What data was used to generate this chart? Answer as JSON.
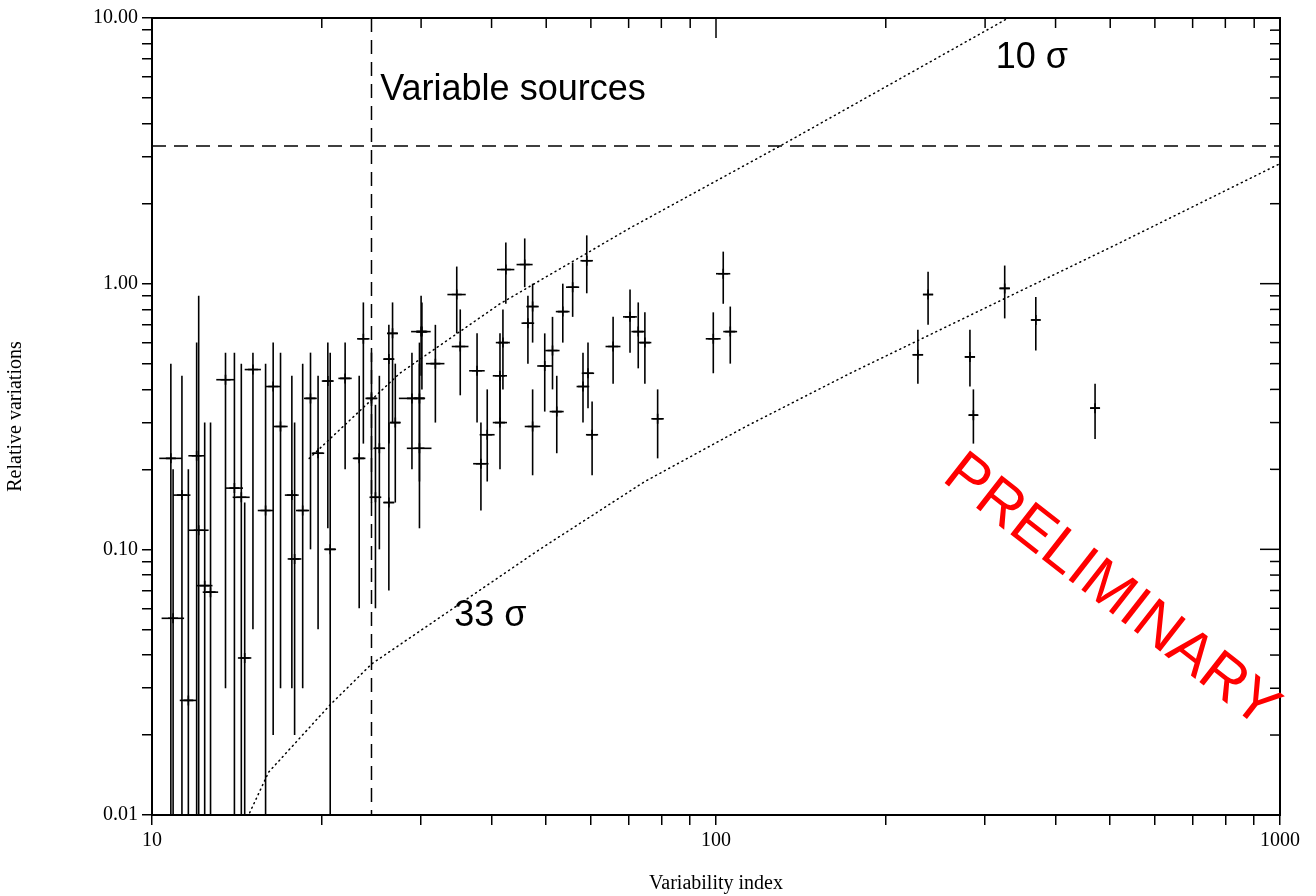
{
  "chart_data": {
    "type": "scatter",
    "xlabel": "Variability index",
    "ylabel": "Relative variations",
    "log": "xy",
    "grid": false,
    "legend": false,
    "xlim": [
      10,
      1000
    ],
    "ylim": [
      0.01,
      10
    ],
    "xticks": [
      10,
      {
        "value": 20,
        "label": null
      },
      {
        "value": 30,
        "label": null
      },
      {
        "value": 40,
        "label": null
      },
      {
        "value": 50,
        "label": null
      },
      {
        "value": 60,
        "label": null
      },
      {
        "value": 70,
        "label": null
      },
      {
        "value": 80,
        "label": null
      },
      {
        "value": 90,
        "label": null
      },
      100,
      {
        "value": 200,
        "label": null
      },
      {
        "value": 300,
        "label": null
      },
      {
        "value": 400,
        "label": null
      },
      {
        "value": 500,
        "label": null
      },
      {
        "value": 600,
        "label": null
      },
      {
        "value": 700,
        "label": null
      },
      {
        "value": 800,
        "label": null
      },
      {
        "value": 900,
        "label": null
      },
      1000
    ],
    "yticks": [
      {
        "value": 0.01,
        "label": "0.01"
      },
      {
        "value": 0.02,
        "label": null
      },
      {
        "value": 0.03,
        "label": null
      },
      {
        "value": 0.04,
        "label": null
      },
      {
        "value": 0.05,
        "label": null
      },
      {
        "value": 0.06,
        "label": null
      },
      {
        "value": 0.07,
        "label": null
      },
      {
        "value": 0.08,
        "label": null
      },
      {
        "value": 0.09,
        "label": null
      },
      {
        "value": 0.1,
        "label": "0.10"
      },
      {
        "value": 0.2,
        "label": null
      },
      {
        "value": 0.3,
        "label": null
      },
      {
        "value": 0.4,
        "label": null
      },
      {
        "value": 0.5,
        "label": null
      },
      {
        "value": 0.6,
        "label": null
      },
      {
        "value": 0.7,
        "label": null
      },
      {
        "value": 0.8,
        "label": null
      },
      {
        "value": 0.9,
        "label": null
      },
      {
        "value": 1,
        "label": "1.00"
      },
      {
        "value": 2,
        "label": null
      },
      {
        "value": 3,
        "label": null
      },
      {
        "value": 4,
        "label": null
      },
      {
        "value": 5,
        "label": null
      },
      {
        "value": 6,
        "label": null
      },
      {
        "value": 7,
        "label": null
      },
      {
        "value": 8,
        "label": null
      },
      {
        "value": 9,
        "label": null
      },
      {
        "value": 10,
        "label": "10.00"
      }
    ],
    "ref_lines": [
      {
        "axis": "x",
        "value": 24.5,
        "color": "#000000",
        "line_style": "dashed"
      },
      {
        "axis": "y",
        "value": 3.3,
        "color": "#000000",
        "line_style": "dashed"
      }
    ],
    "annotations": [
      "Variable sources",
      "10 σ",
      "33 σ",
      "PRELIMINARY"
    ],
    "series": [
      {
        "color": "#000000",
        "marker": "cross",
        "x": [
          237.7,
          228,
          282,
          286,
          325,
          369,
          470,
          103,
          98.9,
          106,
          42.4,
          45.8,
          59.0,
          55.7,
          53.5,
          34.7,
          30.0,
          47.3,
          46.4,
          65.7,
          70.4,
          72.8,
          74.8,
          78.8,
          59.3,
          58.1,
          60.3,
          52.2,
          47.3,
          51.3,
          49.7,
          41.9,
          41.4,
          41.4,
          39.3,
          38.3,
          37.7,
          35.2,
          29.8,
          28.9,
          31.8,
          10.8,
          10.9,
          11.3,
          11.6,
          12.1,
          12.0,
          12.4,
          12.7,
          13.5,
          14.0,
          14.4,
          14.6,
          15.1,
          15.9,
          16.4,
          16.9,
          17.7,
          17.9,
          18.5,
          19.1,
          19.7,
          20.7,
          20.5,
          22.0,
          23.3,
          23.7,
          24.9,
          25.3,
          26.3,
          26.7,
          27.0,
          26.3,
          29.8,
          30.1,
          24.5
        ],
        "values": [
          0.91,
          0.54,
          0.53,
          0.32,
          0.96,
          0.73,
          0.34,
          1.09,
          0.62,
          0.66,
          1.13,
          1.18,
          1.22,
          0.97,
          0.785,
          0.91,
          0.66,
          0.82,
          0.71,
          0.58,
          0.75,
          0.66,
          0.6,
          0.31,
          0.46,
          0.41,
          0.27,
          0.33,
          0.29,
          0.56,
          0.49,
          0.6,
          0.45,
          0.3,
          0.27,
          0.21,
          0.47,
          0.58,
          0.24,
          0.37,
          0.5,
          0.22,
          0.055,
          0.16,
          0.027,
          0.118,
          0.225,
          0.073,
          0.069,
          0.435,
          0.17,
          0.157,
          0.039,
          0.475,
          0.14,
          0.41,
          0.29,
          0.16,
          0.092,
          0.14,
          0.37,
          0.23,
          0.1,
          0.43,
          0.44,
          0.22,
          0.62,
          0.157,
          0.24,
          0.15,
          0.65,
          0.3,
          0.52,
          0.37,
          0.66,
          0.37
        ],
        "errors": [
          [
            0.7,
            1.11
          ],
          [
            0.42,
            0.67
          ],
          [
            0.41,
            0.67
          ],
          [
            0.25,
            0.4
          ],
          [
            0.74,
            1.17
          ],
          [
            0.56,
            0.89
          ],
          [
            0.26,
            0.42
          ],
          [
            0.84,
            1.32
          ],
          [
            0.46,
            0.78
          ],
          [
            0.5,
            0.82
          ],
          [
            0.84,
            1.43
          ],
          [
            0.97,
            1.48
          ],
          [
            0.92,
            1.52
          ],
          [
            0.75,
            1.2
          ],
          [
            0.6,
            1.0
          ],
          [
            0.65,
            1.16
          ],
          [
            0.45,
            0.9
          ],
          [
            0.6,
            1.0
          ],
          [
            0.5,
            0.9
          ],
          [
            0.42,
            0.75
          ],
          [
            0.55,
            0.95
          ],
          [
            0.48,
            0.85
          ],
          [
            0.42,
            0.78
          ],
          [
            0.22,
            0.4
          ],
          [
            0.34,
            0.6
          ],
          [
            0.3,
            0.55
          ],
          [
            0.19,
            0.36
          ],
          [
            0.23,
            0.45
          ],
          [
            0.19,
            0.4
          ],
          [
            0.4,
            0.75
          ],
          [
            0.33,
            0.65
          ],
          [
            0.4,
            0.8
          ],
          [
            0.3,
            0.65
          ],
          [
            0.2,
            0.45
          ],
          [
            0.18,
            0.4
          ],
          [
            0.14,
            0.3
          ],
          [
            0.3,
            0.65
          ],
          [
            0.38,
            0.8
          ],
          [
            0.12,
            0.5
          ],
          [
            0.2,
            0.55
          ],
          [
            0.3,
            0.7
          ],
          [
            0.01,
            0.5
          ],
          [
            0.01,
            0.2
          ],
          [
            0.01,
            0.45
          ],
          [
            0.01,
            0.2
          ],
          [
            0.01,
            0.9
          ],
          [
            0.01,
            0.6
          ],
          [
            0.01,
            0.3
          ],
          [
            0.01,
            0.3
          ],
          [
            0.03,
            0.55
          ],
          [
            0.01,
            0.55
          ],
          [
            0.01,
            0.5
          ],
          [
            0.01,
            0.15
          ],
          [
            0.05,
            0.55
          ],
          [
            0.01,
            0.5
          ],
          [
            0.02,
            0.6
          ],
          [
            0.03,
            0.55
          ],
          [
            0.03,
            0.45
          ],
          [
            0.02,
            0.3
          ],
          [
            0.03,
            0.5
          ],
          [
            0.1,
            0.55
          ],
          [
            0.05,
            0.45
          ],
          [
            0.01,
            0.55
          ],
          [
            0.12,
            0.6
          ],
          [
            0.2,
            0.6
          ],
          [
            0.06,
            0.45
          ],
          [
            0.25,
            0.85
          ],
          [
            0.06,
            0.35
          ],
          [
            0.1,
            0.45
          ],
          [
            0.07,
            0.3
          ],
          [
            0.3,
            0.85
          ],
          [
            0.15,
            0.5
          ],
          [
            0.25,
            0.7
          ],
          [
            0.18,
            0.6
          ],
          [
            0.4,
            0.85
          ],
          [
            0.15,
            0.55
          ]
        ],
        "xerrors": [
          5,
          5,
          6,
          5,
          7,
          7,
          9,
          3,
          3,
          3,
          1.5,
          1.5,
          1.5,
          1.5,
          1.5,
          1.3,
          1.2,
          1.2,
          1.2,
          2,
          2,
          2,
          2,
          2,
          1.5,
          1.5,
          1.5,
          1.5,
          1.5,
          1.5,
          1.5,
          1.2,
          1.2,
          1.2,
          1.2,
          1.2,
          1.2,
          1.2,
          1.5,
          1.5,
          1.2,
          0.5,
          0.5,
          0.4,
          0.4,
          0.5,
          0.4,
          0.4,
          0.4,
          0.5,
          0.5,
          0.5,
          0.4,
          0.5,
          0.5,
          0.5,
          0.5,
          0.5,
          0.5,
          0.5,
          0.5,
          0.5,
          0.5,
          0.5,
          0.6,
          0.6,
          0.6,
          0.6,
          0.6,
          0.6,
          0.6,
          0.6,
          0.6,
          0.7,
          0.7,
          0.6
        ]
      },
      {
        "type": "line",
        "color": "#000000",
        "line_style": "dotted",
        "x": [
          19,
          27.5,
          41.4,
          70.4,
          130,
          330
        ],
        "values": [
          0.22,
          0.46,
          0.84,
          1.62,
          3.3,
          10
        ]
      },
      {
        "type": "line",
        "color": "#000000",
        "line_style": "dotted",
        "x": [
          14.9,
          16.1,
          20.7,
          24.5,
          48.7,
          74.8,
          113,
          173,
          515,
          1000
        ],
        "values": [
          0.0102,
          0.0145,
          0.026,
          0.037,
          0.1,
          0.18,
          0.29,
          0.46,
          1.41,
          2.83
        ]
      }
    ]
  }
}
